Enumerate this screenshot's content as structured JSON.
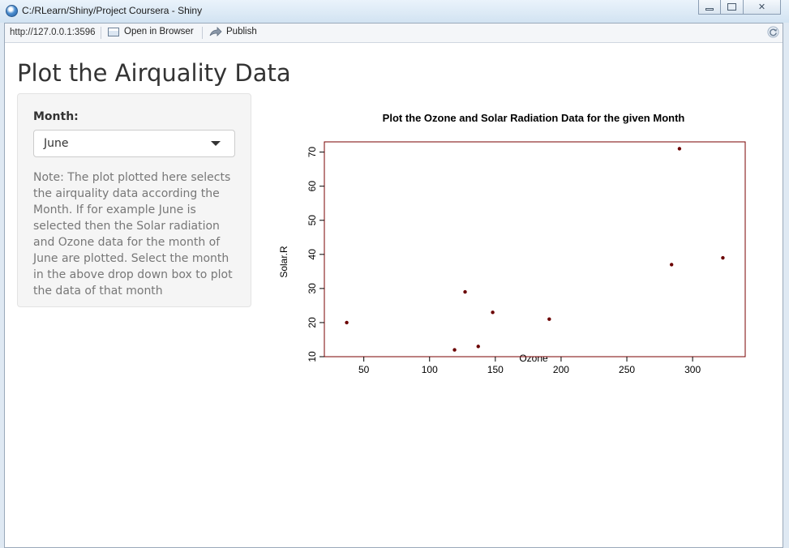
{
  "window": {
    "title": "C:/RLearn/Shiny/Project Coursera - Shiny",
    "icon": "globe-icon"
  },
  "toolbar": {
    "url": "http://127.0.0.1:3596",
    "open_browser_label": "Open in Browser",
    "publish_label": "Publish"
  },
  "page": {
    "title": "Plot the Airquality Data",
    "month_label": "Month:",
    "month_selected": "June",
    "note": "Note: The plot plotted here selects the airquality data according the Month. If for example June is selected then the Solar radiation and Ozone data for the month of June are plotted. Select the month in the above drop down box to plot the data of that month"
  },
  "chart_data": {
    "type": "scatter",
    "title": "Plot the Ozone and Solar Radiation Data for the given Month",
    "xlabel": "Ozone",
    "ylabel": "Solar.R",
    "xlim": [
      20,
      340
    ],
    "ylim": [
      10,
      73
    ],
    "x_ticks": [
      50,
      100,
      150,
      200,
      250,
      300
    ],
    "y_ticks": [
      10,
      20,
      30,
      40,
      50,
      60,
      70
    ],
    "points": [
      {
        "x": 37,
        "y": 20
      },
      {
        "x": 119,
        "y": 12
      },
      {
        "x": 127,
        "y": 29
      },
      {
        "x": 137,
        "y": 13
      },
      {
        "x": 148,
        "y": 23
      },
      {
        "x": 191,
        "y": 21
      },
      {
        "x": 284,
        "y": 37
      },
      {
        "x": 290,
        "y": 71
      },
      {
        "x": 323,
        "y": 39
      }
    ],
    "point_color": "#6b0000",
    "box_color": "#7a0000",
    "grid": false
  }
}
